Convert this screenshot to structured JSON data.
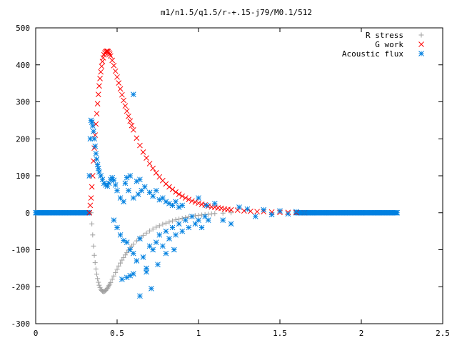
{
  "chart_data": {
    "type": "scatter",
    "title": "m1/n1.5/q1.5/r-+.15-j79/M0.1/512",
    "xlabel": "",
    "ylabel": "",
    "xlim": [
      0,
      2.5
    ],
    "ylim": [
      -300,
      500
    ],
    "xticks": [
      0,
      0.5,
      1,
      1.5,
      2,
      2.5
    ],
    "xtick_labels": [
      "0",
      "0.5",
      "1",
      "1.5",
      "2",
      "2.5"
    ],
    "yticks": [
      -300,
      -200,
      -100,
      0,
      100,
      200,
      300,
      400,
      500
    ],
    "ytick_labels": [
      "-300",
      "-200",
      "-100",
      "0",
      "100",
      "200",
      "300",
      "400",
      "500"
    ],
    "grid": false,
    "legend_position": "top-right",
    "series": [
      {
        "name": "R stress",
        "color": "#a0a0a0",
        "marker": "plus",
        "points": [
          [
            0.34,
            0
          ],
          [
            0.345,
            -30
          ],
          [
            0.35,
            -60
          ],
          [
            0.355,
            -90
          ],
          [
            0.36,
            -115
          ],
          [
            0.365,
            -135
          ],
          [
            0.37,
            -152
          ],
          [
            0.375,
            -166
          ],
          [
            0.38,
            -178
          ],
          [
            0.385,
            -188
          ],
          [
            0.39,
            -196
          ],
          [
            0.395,
            -202
          ],
          [
            0.4,
            -207
          ],
          [
            0.405,
            -210
          ],
          [
            0.41,
            -212
          ],
          [
            0.415,
            -213
          ],
          [
            0.42,
            -213
          ],
          [
            0.425,
            -212
          ],
          [
            0.43,
            -210
          ],
          [
            0.435,
            -207
          ],
          [
            0.44,
            -204
          ],
          [
            0.445,
            -201
          ],
          [
            0.45,
            -197
          ],
          [
            0.455,
            -193
          ],
          [
            0.46,
            -189
          ],
          [
            0.47,
            -180
          ],
          [
            0.48,
            -171
          ],
          [
            0.49,
            -162
          ],
          [
            0.5,
            -153
          ],
          [
            0.51,
            -144
          ],
          [
            0.52,
            -136
          ],
          [
            0.53,
            -128
          ],
          [
            0.54,
            -121
          ],
          [
            0.55,
            -114
          ],
          [
            0.56,
            -108
          ],
          [
            0.57,
            -101
          ],
          [
            0.58,
            -95
          ],
          [
            0.59,
            -90
          ],
          [
            0.6,
            -85
          ],
          [
            0.62,
            -76
          ],
          [
            0.64,
            -68
          ],
          [
            0.66,
            -61
          ],
          [
            0.68,
            -55
          ],
          [
            0.7,
            -49
          ],
          [
            0.72,
            -44
          ],
          [
            0.74,
            -39
          ],
          [
            0.76,
            -35
          ],
          [
            0.78,
            -31
          ],
          [
            0.8,
            -28
          ],
          [
            0.82,
            -25
          ],
          [
            0.84,
            -22
          ],
          [
            0.86,
            -19
          ],
          [
            0.88,
            -17
          ],
          [
            0.9,
            -15
          ],
          [
            0.92,
            -13
          ],
          [
            0.94,
            -11
          ],
          [
            0.96,
            -10
          ],
          [
            0.98,
            -8
          ],
          [
            1.0,
            -7
          ],
          [
            1.02,
            -6
          ],
          [
            1.04,
            -5
          ],
          [
            1.06,
            -4
          ],
          [
            1.08,
            -3
          ],
          [
            1.1,
            -2
          ],
          [
            1.15,
            -1
          ],
          [
            1.2,
            0
          ]
        ]
      },
      {
        "name": "G work",
        "color": "#ff0000",
        "marker": "cross",
        "points": [
          [
            0.33,
            0
          ],
          [
            0.335,
            20
          ],
          [
            0.34,
            40
          ],
          [
            0.345,
            70
          ],
          [
            0.35,
            100
          ],
          [
            0.355,
            140
          ],
          [
            0.36,
            175
          ],
          [
            0.365,
            210
          ],
          [
            0.37,
            240
          ],
          [
            0.375,
            268
          ],
          [
            0.38,
            295
          ],
          [
            0.385,
            320
          ],
          [
            0.39,
            343
          ],
          [
            0.395,
            363
          ],
          [
            0.4,
            381
          ],
          [
            0.405,
            396
          ],
          [
            0.41,
            409
          ],
          [
            0.415,
            419
          ],
          [
            0.42,
            427
          ],
          [
            0.425,
            432
          ],
          [
            0.43,
            435
          ],
          [
            0.435,
            437
          ],
          [
            0.44,
            437
          ],
          [
            0.445,
            436
          ],
          [
            0.45,
            433
          ],
          [
            0.455,
            429
          ],
          [
            0.46,
            424
          ],
          [
            0.47,
            412
          ],
          [
            0.48,
            398
          ],
          [
            0.49,
            383
          ],
          [
            0.5,
            367
          ],
          [
            0.51,
            351
          ],
          [
            0.52,
            335
          ],
          [
            0.53,
            319
          ],
          [
            0.54,
            304
          ],
          [
            0.55,
            289
          ],
          [
            0.56,
            275
          ],
          [
            0.57,
            261
          ],
          [
            0.58,
            248
          ],
          [
            0.59,
            236
          ],
          [
            0.6,
            224
          ],
          [
            0.62,
            202
          ],
          [
            0.64,
            182
          ],
          [
            0.66,
            164
          ],
          [
            0.68,
            148
          ],
          [
            0.7,
            133
          ],
          [
            0.72,
            120
          ],
          [
            0.74,
            108
          ],
          [
            0.76,
            97
          ],
          [
            0.78,
            87
          ],
          [
            0.8,
            78
          ],
          [
            0.82,
            70
          ],
          [
            0.84,
            63
          ],
          [
            0.86,
            56
          ],
          [
            0.88,
            50
          ],
          [
            0.9,
            45
          ],
          [
            0.92,
            40
          ],
          [
            0.94,
            36
          ],
          [
            0.96,
            32
          ],
          [
            0.98,
            29
          ],
          [
            1.0,
            26
          ],
          [
            1.02,
            23
          ],
          [
            1.04,
            21
          ],
          [
            1.06,
            18
          ],
          [
            1.08,
            16
          ],
          [
            1.1,
            15
          ],
          [
            1.12,
            13
          ],
          [
            1.14,
            12
          ],
          [
            1.16,
            10
          ],
          [
            1.18,
            9
          ],
          [
            1.2,
            8
          ],
          [
            1.24,
            7
          ],
          [
            1.28,
            5
          ],
          [
            1.32,
            4
          ],
          [
            1.36,
            3
          ],
          [
            1.4,
            3
          ],
          [
            1.45,
            2
          ],
          [
            1.5,
            1
          ],
          [
            1.55,
            1
          ],
          [
            1.6,
            1
          ],
          [
            1.65,
            0
          ]
        ]
      },
      {
        "name": "Acoustic flux",
        "color": "#0080e0",
        "marker": "star",
        "points": [
          [
            0.33,
            100
          ],
          [
            0.335,
            200
          ],
          [
            0.34,
            250
          ],
          [
            0.345,
            245
          ],
          [
            0.35,
            235
          ],
          [
            0.355,
            220
          ],
          [
            0.36,
            200
          ],
          [
            0.365,
            180
          ],
          [
            0.37,
            160
          ],
          [
            0.375,
            145
          ],
          [
            0.38,
            130
          ],
          [
            0.385,
            120
          ],
          [
            0.39,
            110
          ],
          [
            0.4,
            100
          ],
          [
            0.41,
            90
          ],
          [
            0.42,
            80
          ],
          [
            0.43,
            75
          ],
          [
            0.44,
            72
          ],
          [
            0.45,
            80
          ],
          [
            0.46,
            90
          ],
          [
            0.47,
            95
          ],
          [
            0.48,
            88
          ],
          [
            0.49,
            75
          ],
          [
            0.5,
            60
          ],
          [
            0.52,
            40
          ],
          [
            0.54,
            30
          ],
          [
            0.55,
            80
          ],
          [
            0.56,
            95
          ],
          [
            0.58,
            100
          ],
          [
            0.6,
            320
          ],
          [
            0.57,
            60
          ],
          [
            0.6,
            40
          ],
          [
            0.62,
            85
          ],
          [
            0.63,
            50
          ],
          [
            0.64,
            90
          ],
          [
            0.65,
            60
          ],
          [
            0.67,
            70
          ],
          [
            0.7,
            55
          ],
          [
            0.72,
            45
          ],
          [
            0.74,
            60
          ],
          [
            0.76,
            35
          ],
          [
            0.78,
            40
          ],
          [
            0.8,
            30
          ],
          [
            0.82,
            25
          ],
          [
            0.84,
            20
          ],
          [
            0.86,
            30
          ],
          [
            0.88,
            15
          ],
          [
            0.9,
            20
          ],
          [
            0.48,
            -20
          ],
          [
            0.5,
            -40
          ],
          [
            0.52,
            -60
          ],
          [
            0.54,
            -75
          ],
          [
            0.56,
            -80
          ],
          [
            0.58,
            -100
          ],
          [
            0.6,
            -110
          ],
          [
            0.62,
            -130
          ],
          [
            0.64,
            -70
          ],
          [
            0.66,
            -120
          ],
          [
            0.68,
            -150
          ],
          [
            0.7,
            -90
          ],
          [
            0.72,
            -100
          ],
          [
            0.74,
            -80
          ],
          [
            0.76,
            -60
          ],
          [
            0.78,
            -90
          ],
          [
            0.8,
            -50
          ],
          [
            0.82,
            -70
          ],
          [
            0.84,
            -40
          ],
          [
            0.86,
            -60
          ],
          [
            0.88,
            -30
          ],
          [
            0.9,
            -50
          ],
          [
            0.92,
            -20
          ],
          [
            0.94,
            -40
          ],
          [
            0.96,
            -10
          ],
          [
            0.98,
            -30
          ],
          [
            1.0,
            -20
          ],
          [
            1.02,
            -40
          ],
          [
            1.04,
            -10
          ],
          [
            1.06,
            -20
          ],
          [
            0.53,
            -180
          ],
          [
            0.56,
            -175
          ],
          [
            0.58,
            -170
          ],
          [
            0.6,
            -165
          ],
          [
            0.64,
            -225
          ],
          [
            0.68,
            -160
          ],
          [
            0.71,
            -205
          ],
          [
            0.75,
            -140
          ],
          [
            0.8,
            -110
          ],
          [
            0.85,
            -100
          ],
          [
            1.0,
            40
          ],
          [
            1.05,
            20
          ],
          [
            1.1,
            25
          ],
          [
            1.15,
            -20
          ],
          [
            1.2,
            -30
          ],
          [
            1.25,
            15
          ],
          [
            1.3,
            10
          ],
          [
            1.35,
            -10
          ],
          [
            1.4,
            8
          ],
          [
            1.45,
            -5
          ],
          [
            1.5,
            5
          ],
          [
            1.55,
            -3
          ],
          [
            1.6,
            3
          ],
          [
            1.65,
            0
          ],
          [
            1.7,
            0
          ],
          [
            1.8,
            0
          ],
          [
            1.9,
            0
          ],
          [
            2.0,
            0
          ],
          [
            2.1,
            0
          ],
          [
            2.22,
            0
          ]
        ]
      }
    ]
  }
}
